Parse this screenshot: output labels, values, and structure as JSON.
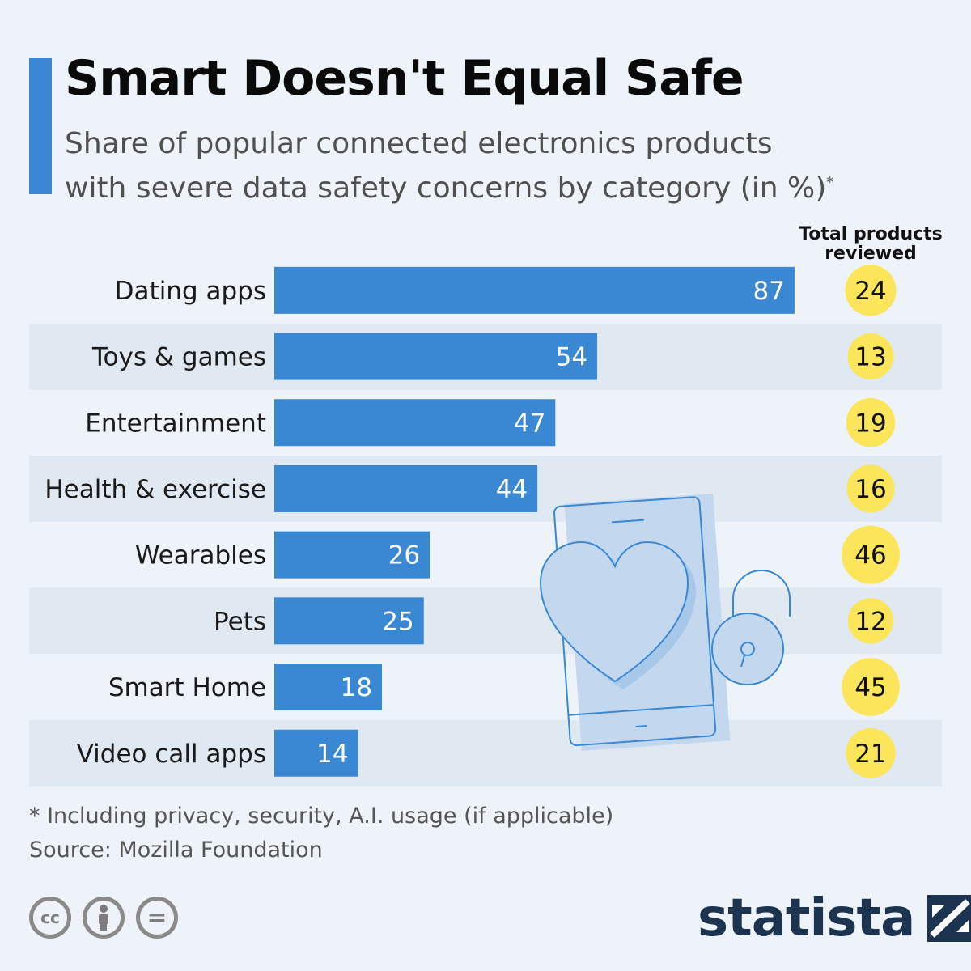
{
  "header": {
    "title": "Smart Doesn't Equal Safe",
    "subtitle_line1": "Share of popular connected electronics products",
    "subtitle_line2": "with severe data safety concerns by category (in %)",
    "subtitle_footnote_mark": "*"
  },
  "column_header": {
    "line1": "Total products",
    "line2": "reviewed"
  },
  "chart_data": {
    "type": "bar",
    "orientation": "horizontal",
    "categories": [
      "Dating apps",
      "Toys & games",
      "Entertainment",
      "Health & exercise",
      "Wearables",
      "Pets",
      "Smart Home",
      "Video call apps"
    ],
    "values": [
      87,
      54,
      47,
      44,
      26,
      25,
      18,
      14
    ],
    "total_products_reviewed": [
      24,
      13,
      19,
      16,
      46,
      12,
      45,
      21
    ],
    "xlim": [
      0,
      100
    ],
    "grid": false,
    "data_labels": true
  },
  "footnote": {
    "note": "* Including privacy, security, A.I. usage (if applicable)",
    "source": "Source: Mozilla Foundation"
  },
  "licenses": {
    "cc": "cc",
    "equals": "="
  },
  "branding": {
    "logo_text": "statista"
  },
  "colors": {
    "bar": "#3a87d4",
    "accent": "#3a87d4",
    "bubble": "#fbe55a",
    "stripe": "#e0e8f2",
    "background": "#eef3f9",
    "illustration_fill": "#c3d8ef",
    "illustration_stroke": "#3a87d4",
    "logo": "#1c3450"
  },
  "icons": {
    "illustration": "phone-heart-padlock-illustration",
    "licenses": [
      "creative-commons-icon",
      "attribution-person-icon",
      "no-derivatives-icon"
    ],
    "logo_mark": "statista-logo-icon"
  }
}
